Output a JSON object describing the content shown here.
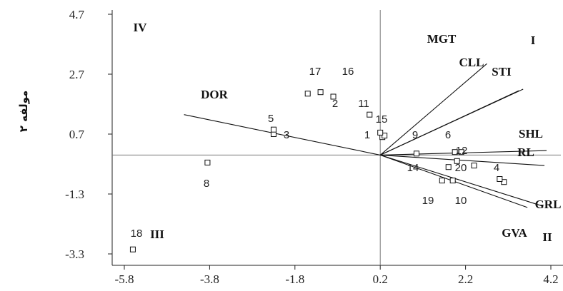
{
  "chart_data": {
    "type": "scatter",
    "subtype": "biplot",
    "ylabel": "مولفه ۲",
    "xlabel": "",
    "xlim": [
      -5.8,
      4.2
    ],
    "ylim": [
      -3.3,
      4.7
    ],
    "xticks": [
      "-5.8",
      "-3.8",
      "-1.8",
      "0.2",
      "2.2",
      "4.2"
    ],
    "yticks": [
      "4.7",
      "2.7",
      "0.7",
      "-1.3",
      "-3.3"
    ],
    "grid": false,
    "origin": [
      0.2,
      0.0
    ],
    "points": [
      {
        "label": "1",
        "x": 0.25,
        "y": 0.6
      },
      {
        "label": "2",
        "x": -0.9,
        "y": 1.95
      },
      {
        "label": "3",
        "x": -2.3,
        "y": 0.7
      },
      {
        "label": "4",
        "x": 3.1,
        "y": -0.9
      },
      {
        "label": "5",
        "x": -2.3,
        "y": 0.85
      },
      {
        "label": "6",
        "x": 2.1,
        "y": 0.1
      },
      {
        "label": "8",
        "x": -3.85,
        "y": -0.25
      },
      {
        "label": "9",
        "x": 0.3,
        "y": 0.65
      },
      {
        "label": "10",
        "x": 1.65,
        "y": -0.85
      },
      {
        "label": "11",
        "x": -0.05,
        "y": 1.35
      },
      {
        "label": "12",
        "x": 1.95,
        "y": 0.1
      },
      {
        "label": "14",
        "x": 1.05,
        "y": 0.05
      },
      {
        "label": "15",
        "x": 0.2,
        "y": 0.75
      },
      {
        "label": "16",
        "x": -1.2,
        "y": 2.1
      },
      {
        "label": "17",
        "x": -1.5,
        "y": 2.05
      },
      {
        "label": "18",
        "x": -5.6,
        "y": -3.15
      },
      {
        "label": "19",
        "x": 1.9,
        "y": -0.85
      },
      {
        "label": "20",
        "x": 2.4,
        "y": -0.35
      }
    ],
    "extra_points": [
      {
        "x": 1.8,
        "y": -0.4
      },
      {
        "x": 2.0,
        "y": -0.2
      },
      {
        "x": 3.0,
        "y": -0.8
      }
    ],
    "vectors": [
      {
        "label": "MGT",
        "x": 2.7,
        "y": 3.05
      },
      {
        "label": "CLL",
        "x": 3.45,
        "y": 2.15
      },
      {
        "label": "STI",
        "x": 3.55,
        "y": 2.2
      },
      {
        "label": "SHL",
        "x": 4.1,
        "y": 0.15
      },
      {
        "label": "RL",
        "x": 4.05,
        "y": -0.35
      },
      {
        "label": "GRL",
        "x": 4.0,
        "y": -1.7
      },
      {
        "label": "GVA",
        "x": 3.65,
        "y": -1.75
      },
      {
        "label": "DOR",
        "x": -4.4,
        "y": 1.35
      }
    ],
    "quadrants": [
      "I",
      "II",
      "III",
      "IV"
    ]
  }
}
